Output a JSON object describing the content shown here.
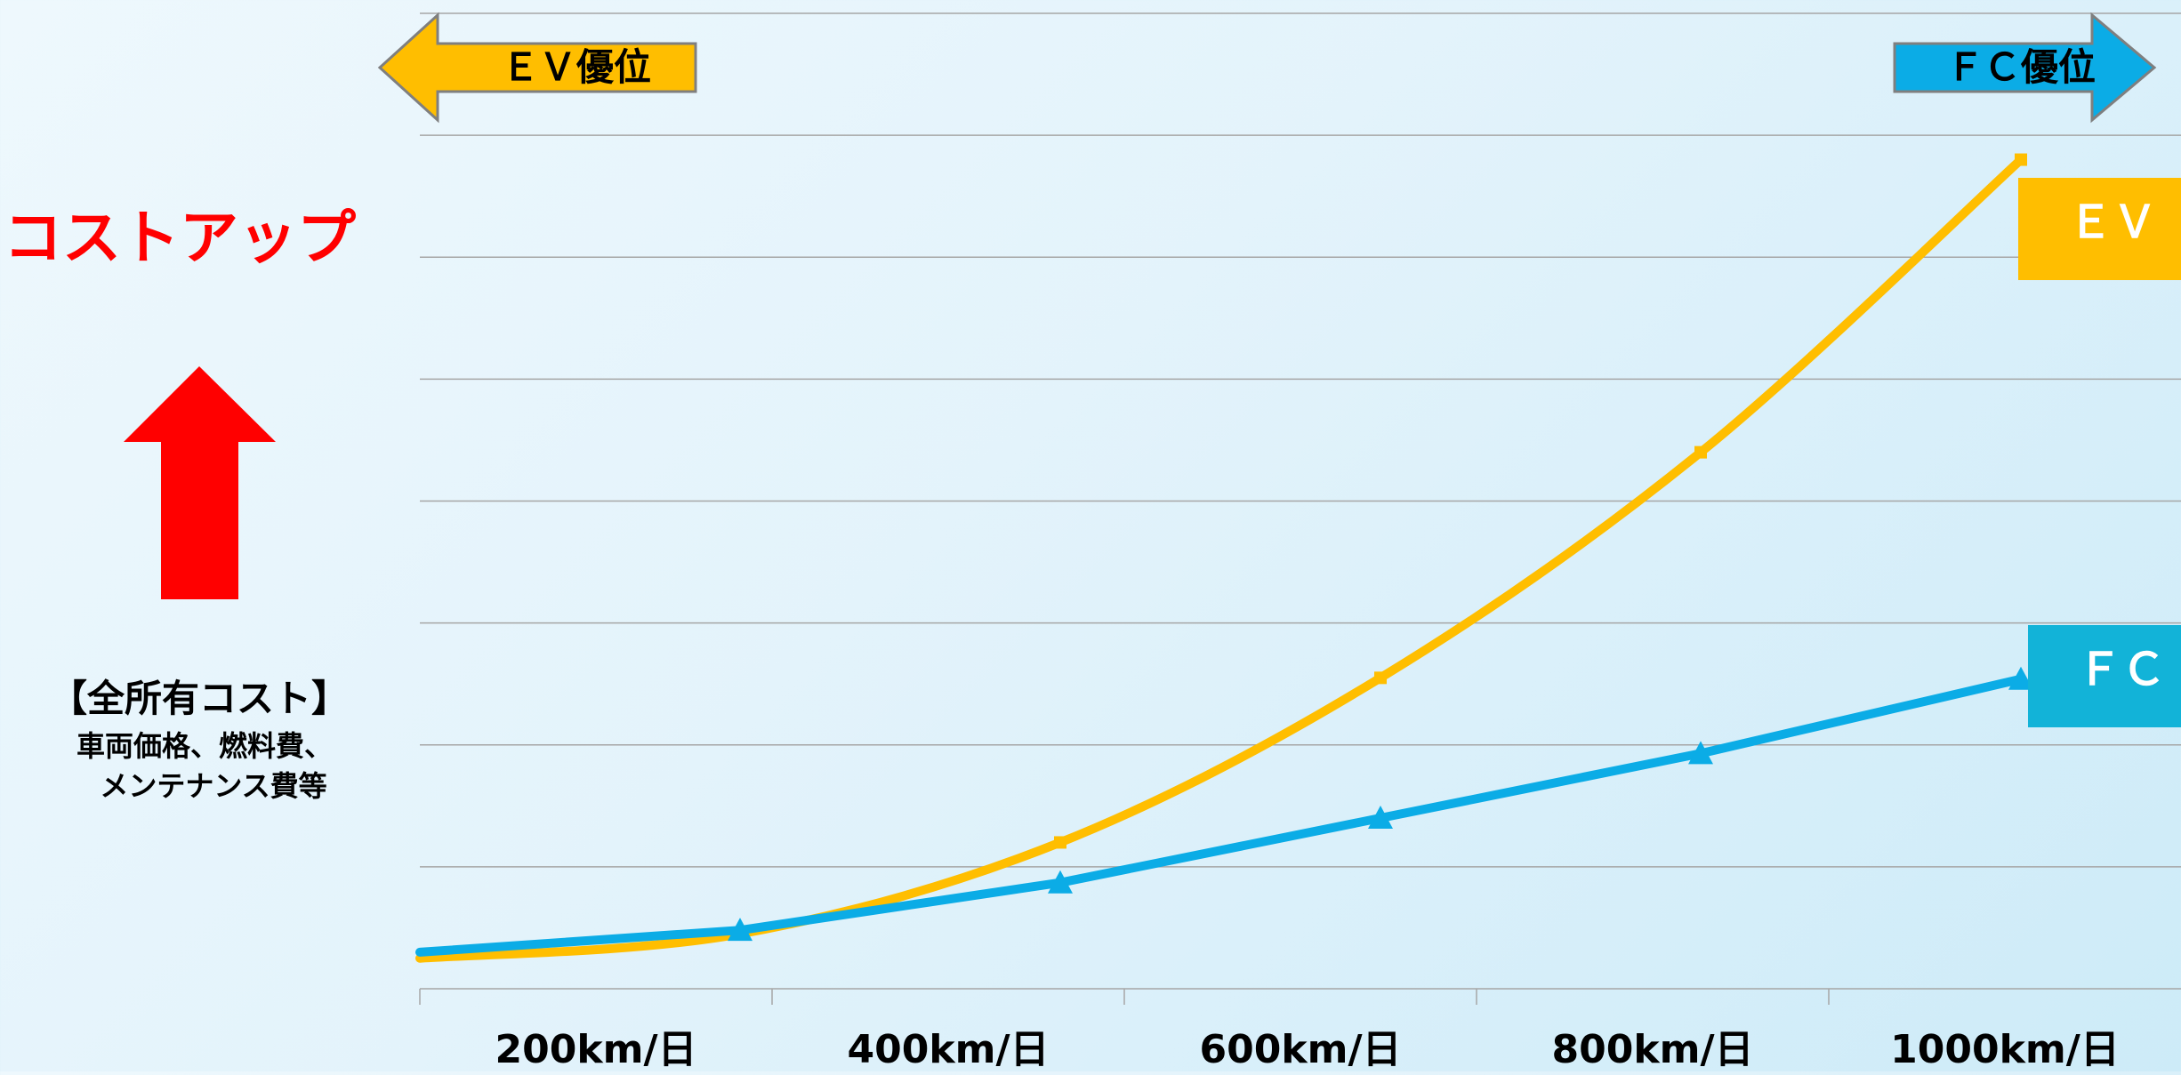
{
  "left_panel": {
    "cost_up_label": "コストアップ",
    "tco_title": "【全所有コスト】",
    "tco_detail_line1": "車両価格、燃料費、",
    "tco_detail_line2": "メンテナンス費等"
  },
  "arrows": {
    "ev_advantage": "ＥＶ優位",
    "fc_advantage": "ＦＣ優位"
  },
  "colors": {
    "ev": "#ffbe00",
    "fc": "#0bace6",
    "fc_label_bg": "#12b3d8",
    "cost_up": "#ff0000",
    "gridline": "#a6a6a6"
  },
  "chart_data": {
    "type": "line",
    "categories": [
      "200km/日",
      "400km/日",
      "600km/日",
      "800km/日",
      "1000km/日"
    ],
    "series": [
      {
        "name": "ＥＶ",
        "x": [
          0,
          200,
          400,
          600,
          800,
          1000
        ],
        "values": [
          0.25,
          0.45,
          1.2,
          2.55,
          4.4,
          6.8
        ],
        "marker": "square",
        "color": "#ffbe00"
      },
      {
        "name": "ＦＣ",
        "x": [
          0,
          200,
          400,
          600,
          800,
          1000
        ],
        "values": [
          0.3,
          0.48,
          0.87,
          1.4,
          1.93,
          2.54
        ],
        "marker": "triangle",
        "color": "#0bace6"
      }
    ],
    "ylim": [
      0,
      8
    ],
    "xlim": [
      0,
      1100
    ],
    "grid": true,
    "y_tick_labels": false
  }
}
